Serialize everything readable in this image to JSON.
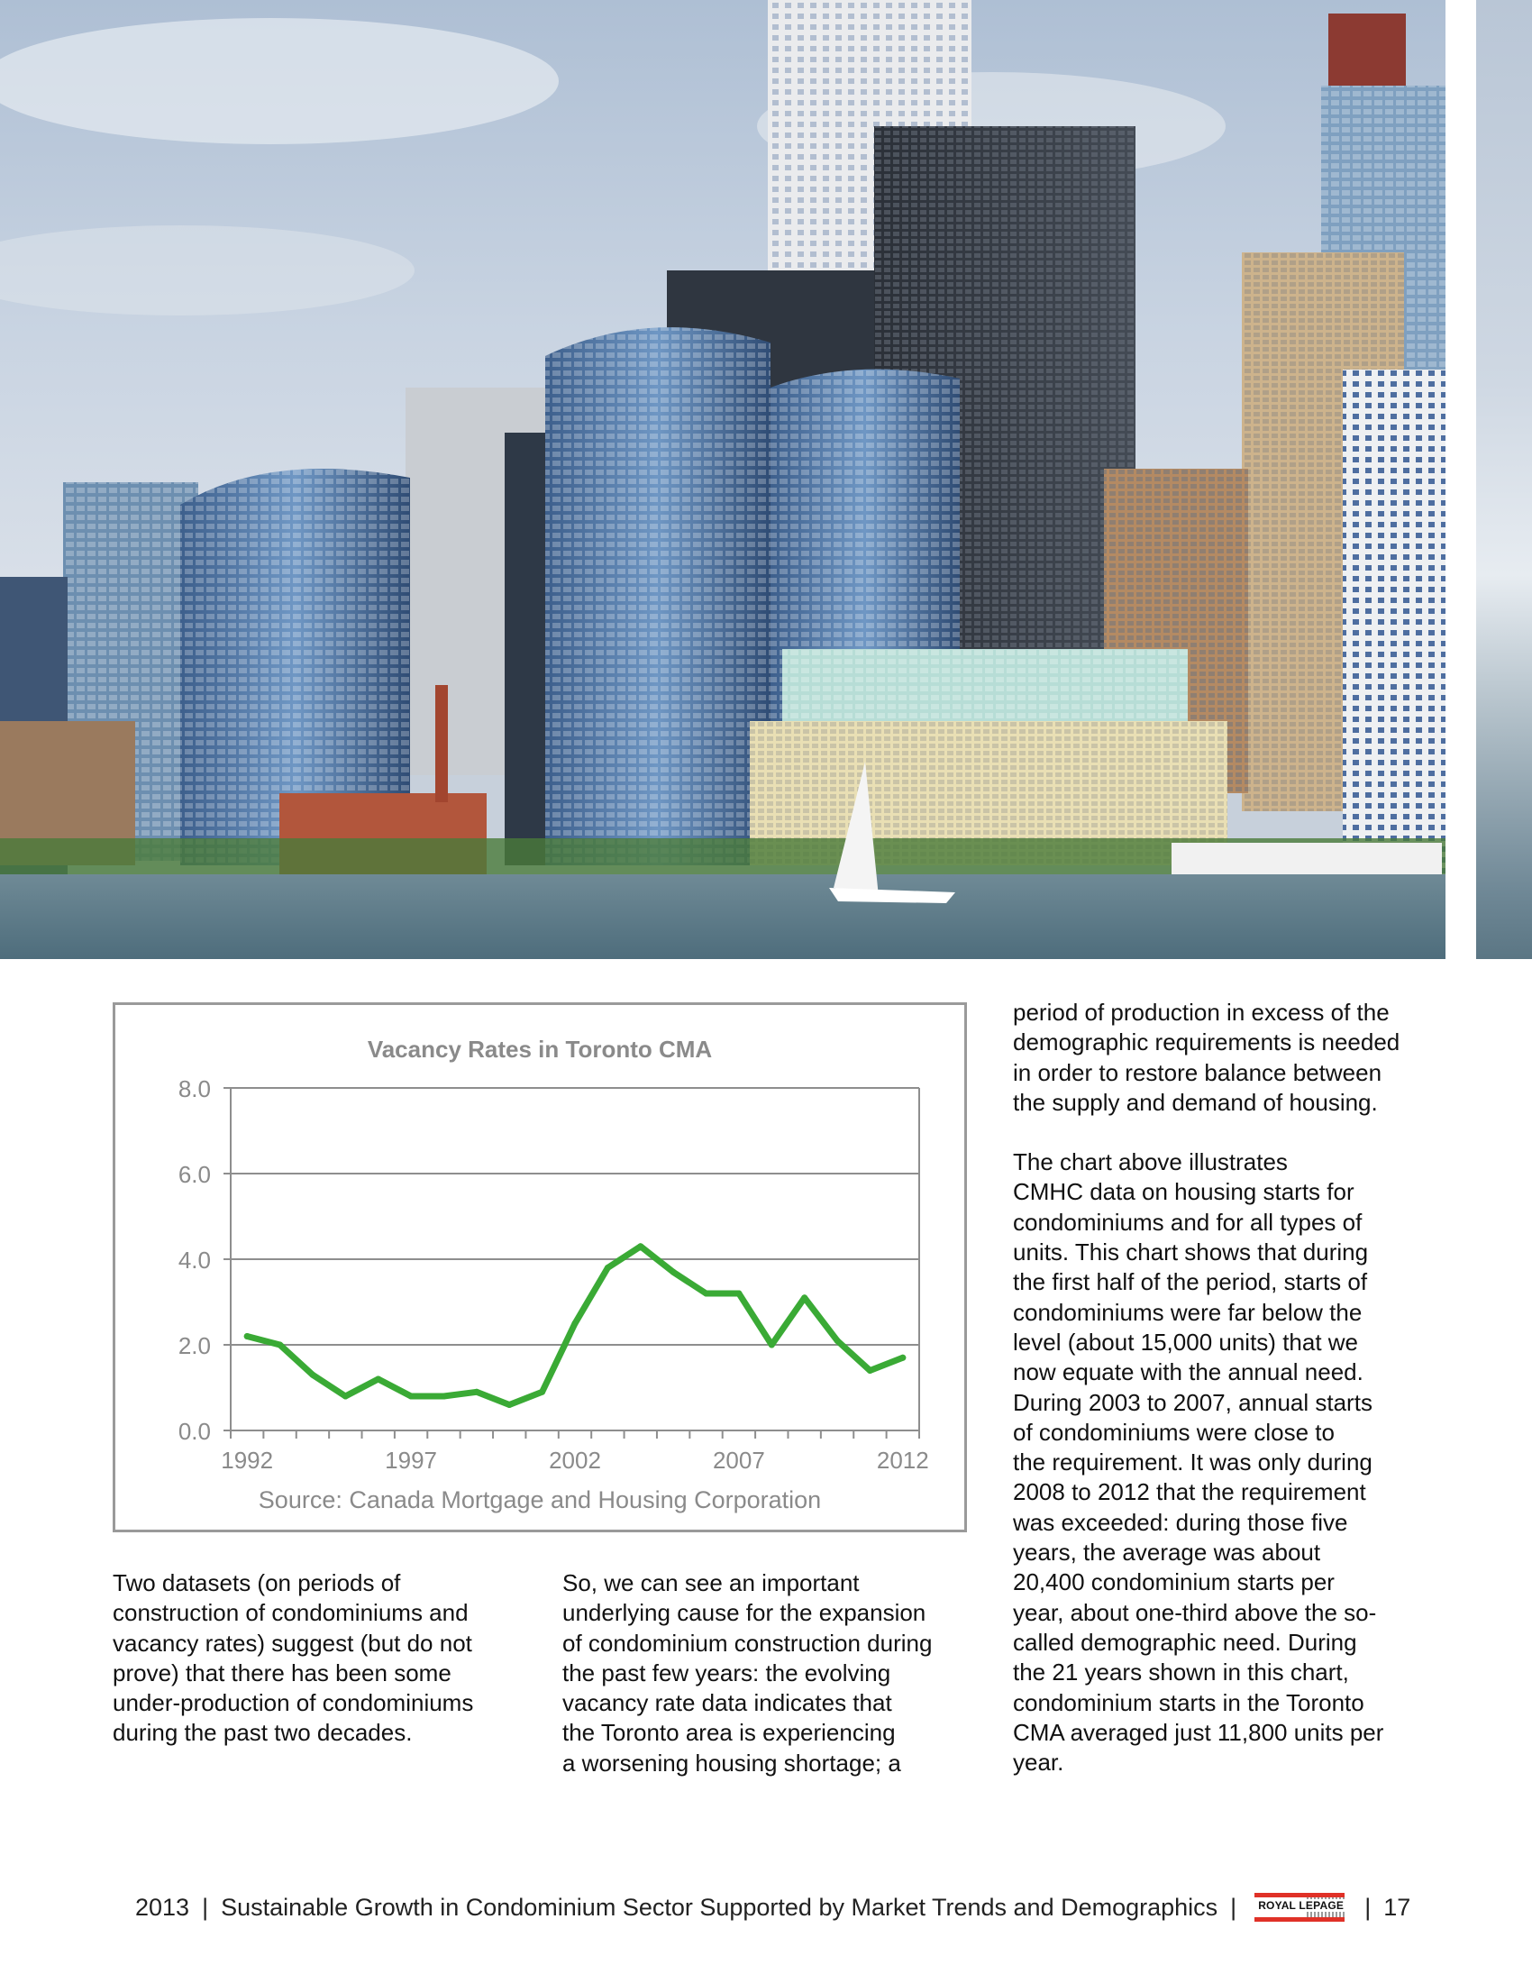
{
  "hero": {
    "icon": "city-skyline-photo"
  },
  "chart_data": {
    "type": "line",
    "title": "Vacancy Rates in Toronto CMA",
    "source": "Source:  Canada Mortgage and Housing Corporation",
    "xlabel": "",
    "ylabel": "",
    "x": [
      1992,
      1993,
      1994,
      1995,
      1996,
      1997,
      1998,
      1999,
      2000,
      2001,
      2002,
      2003,
      2004,
      2005,
      2006,
      2007,
      2008,
      2009,
      2010,
      2011,
      2012
    ],
    "series": [
      {
        "values": [
          2.2,
          2.0,
          1.3,
          0.8,
          1.2,
          0.8,
          0.8,
          0.9,
          0.6,
          0.9,
          2.5,
          3.8,
          4.3,
          3.7,
          3.2,
          3.2,
          2.0,
          3.1,
          2.1,
          1.4,
          1.7
        ],
        "color": "#3aaa35"
      }
    ],
    "ylim": [
      0,
      8
    ],
    "y_ticks": [
      "0.0",
      "2.0",
      "4.0",
      "6.0",
      "8.0"
    ],
    "x_tick_labels": [
      "1992",
      "1997",
      "2002",
      "2007",
      "2012"
    ],
    "grid": true,
    "legend": "none"
  },
  "columns": {
    "col1": [
      "Two datasets (on periods of",
      "construction of condominiums and",
      "vacancy rates) suggest (but do not",
      "prove) that there has been some",
      "under-production of condominiums",
      "during the past two decades."
    ],
    "col2": [
      "So, we can see an important",
      "underlying cause for the expansion",
      "of condominium construction during",
      "the past few years: the evolving",
      "vacancy rate data indicates that",
      "the Toronto area is experiencing",
      "a worsening housing shortage; a"
    ],
    "col3_p1": [
      "period of production in excess of the",
      "demographic requirements is needed",
      "in order to restore balance between",
      "the supply and demand of housing."
    ],
    "col3_p2": [
      "The chart above illustrates",
      "CMHC data on housing starts for",
      "condominiums and for all types of",
      "units. This chart shows that during",
      "the first half of the period, starts of",
      "condominiums were far below the",
      "level (about 15,000 units) that we",
      "now equate with the annual need.",
      "During 2003 to 2007, annual starts",
      "of condominiums were close to",
      "the requirement. It was only during",
      "2008 to 2012 that the requirement",
      "was exceeded: during those five",
      "years, the average was about",
      "20,400 condominium starts per",
      "year, about one-third above the so-",
      "called demographic need. During",
      "the 21 years shown in this chart,",
      "condominium starts in the Toronto",
      "CMA averaged just 11,800 units per",
      "year."
    ]
  },
  "footer": {
    "year": "2013",
    "separator": "|",
    "title": "Sustainable Growth in Condominium Sector Supported by Market Trends and Demographics",
    "logo_text": "ROYAL LEPAGE",
    "page_number": "17"
  }
}
